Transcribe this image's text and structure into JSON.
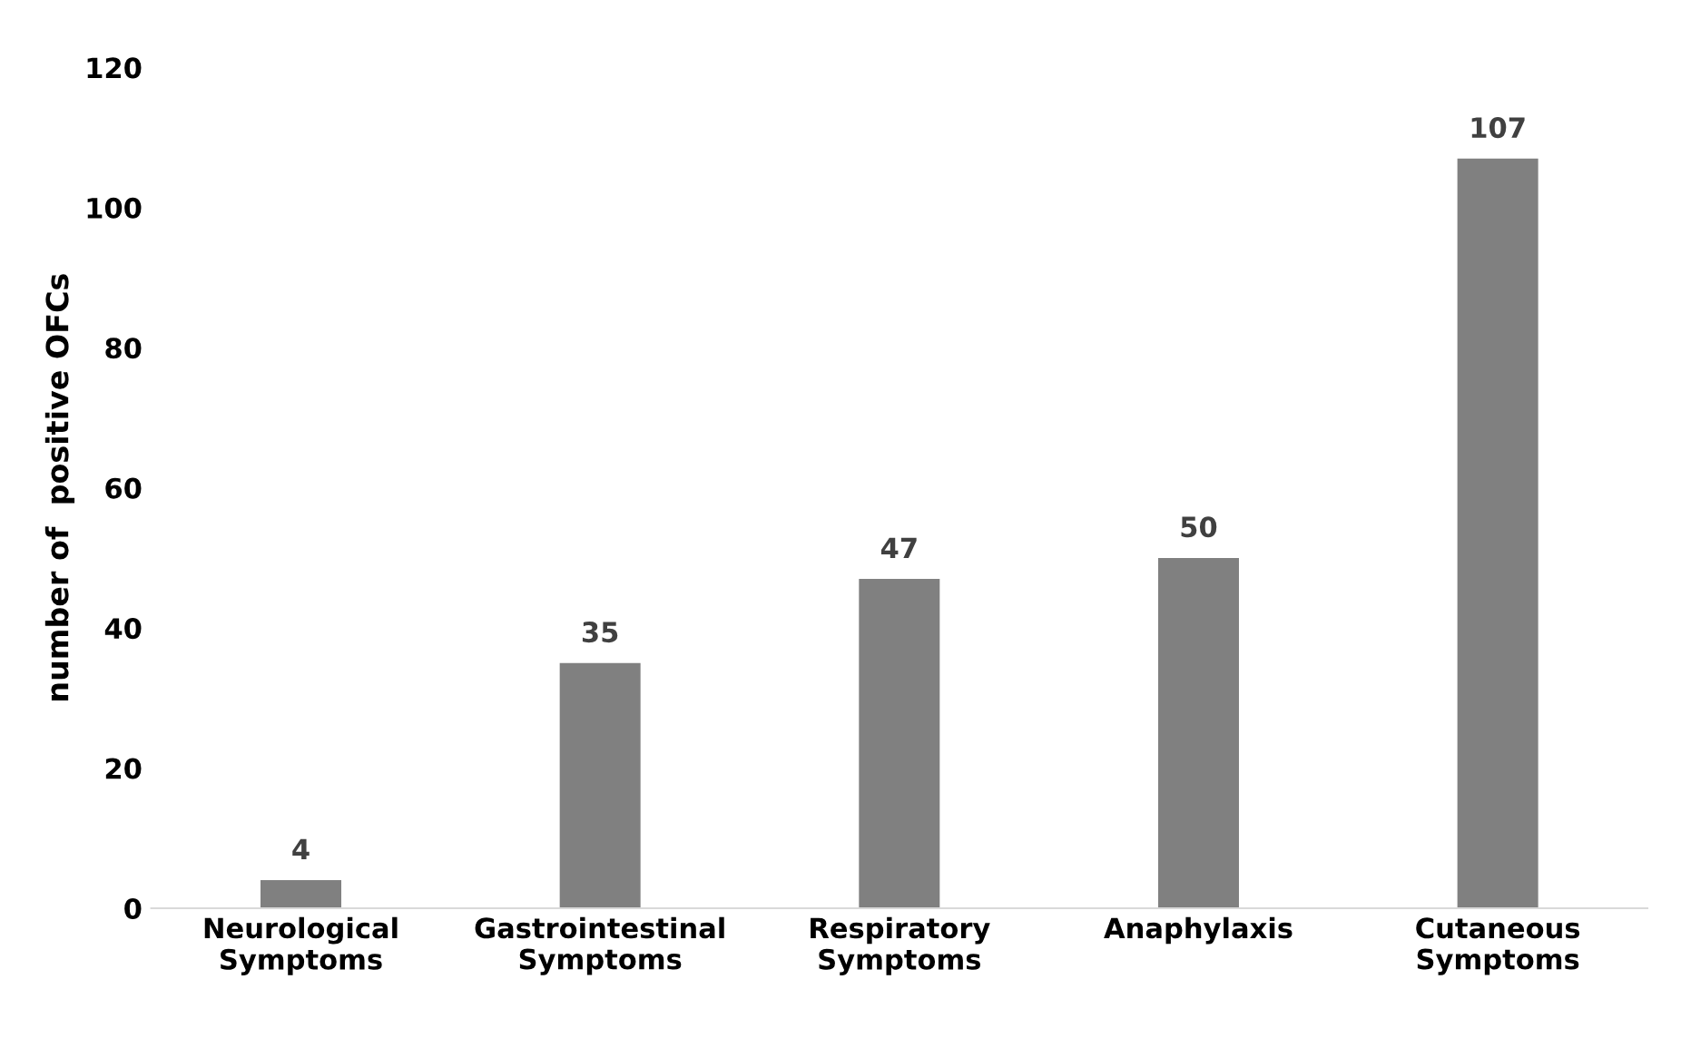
{
  "chart_data": {
    "type": "bar",
    "ylabel": "number of  positive OFCs",
    "categories": [
      "Neurological\nSymptoms",
      "Gastrointestinal\nSymptoms",
      "Respiratory\nSymptoms",
      "Anaphylaxis",
      "Cutaneous\nSymptoms"
    ],
    "values": [
      4,
      35,
      47,
      50,
      107
    ],
    "color": "#808080",
    "ylim": [
      0,
      120
    ],
    "yticks": [
      0,
      20,
      40,
      60,
      80,
      100,
      120
    ],
    "grid": false,
    "data_labels": true
  }
}
